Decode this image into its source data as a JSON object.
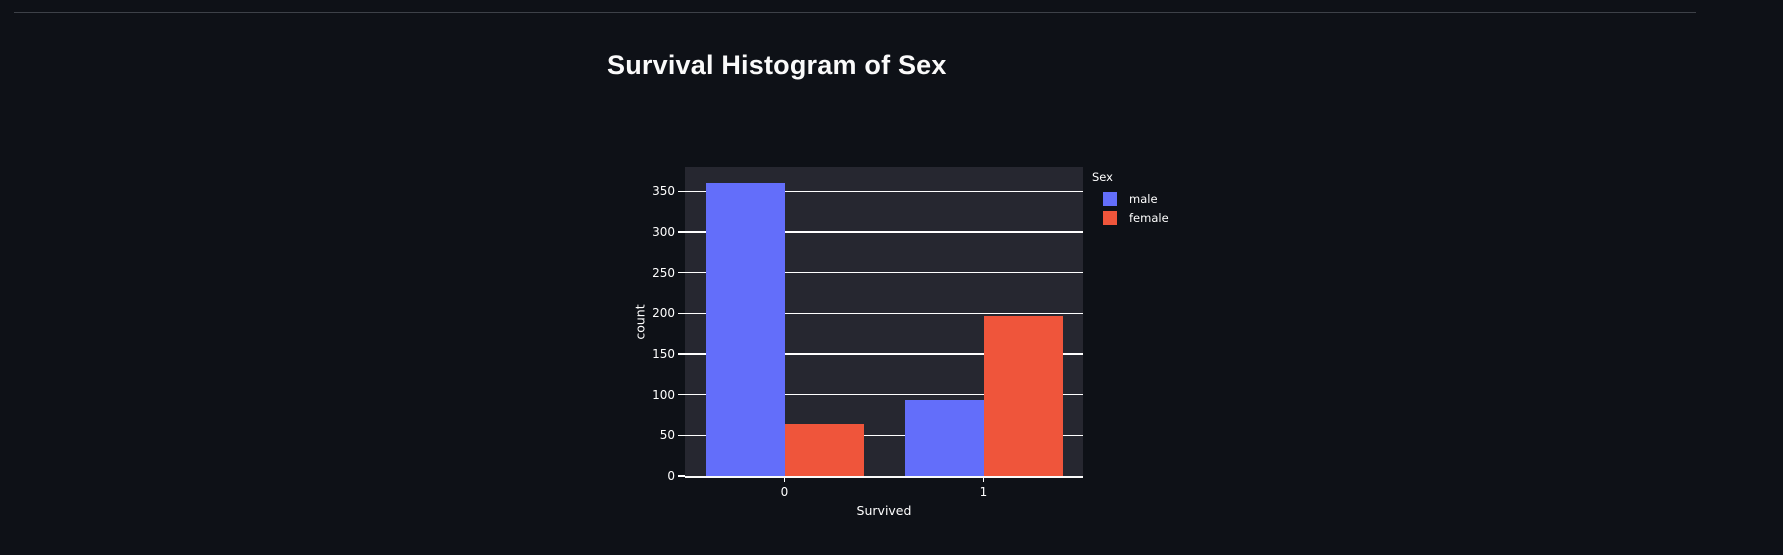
{
  "page": {
    "background_color": "#0e1117",
    "text_color": "#fafafa"
  },
  "chart_data": {
    "type": "bar",
    "title": "Survival Histogram of Sex",
    "categories": [
      "0",
      "1"
    ],
    "series": [
      {
        "name": "male",
        "color": "#636efa",
        "values": [
          360,
          93
        ]
      },
      {
        "name": "female",
        "color": "#ef553b",
        "values": [
          64,
          197
        ]
      }
    ],
    "xlabel": "Survived",
    "ylabel": "count",
    "legend_title": "Sex",
    "legend_position": "outside-top-right",
    "ylim": [
      0,
      380
    ],
    "yticks": [
      0,
      50,
      100,
      150,
      200,
      250,
      300,
      350
    ],
    "grid": "horizontal",
    "gridline_color": "#ffffff",
    "plot_bg_color": "#262730",
    "figure_bg_color": "#0e1117",
    "axis_color": "#fafafa"
  }
}
